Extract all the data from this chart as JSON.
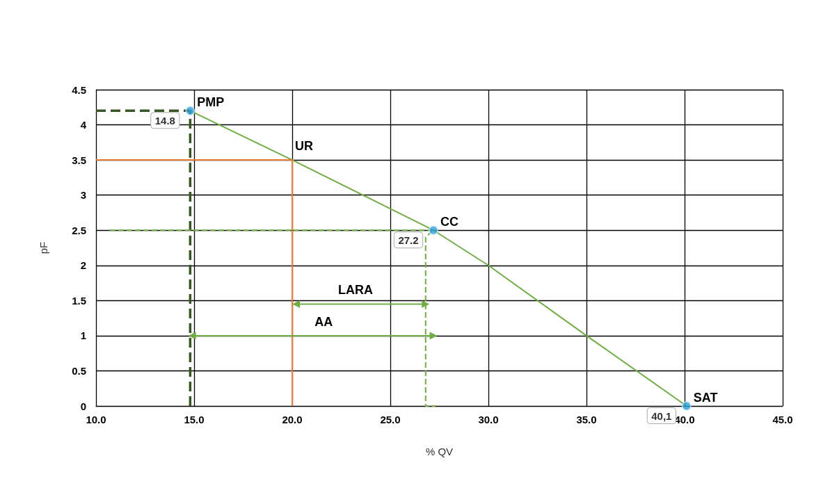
{
  "chart_data": {
    "type": "line",
    "xlabel": "% QV",
    "ylabel": "pF",
    "xlim": [
      10,
      45
    ],
    "xticks": [
      {
        "value": 10,
        "label": "10.0"
      },
      {
        "value": 15,
        "label": "15.0"
      },
      {
        "value": 20,
        "label": "20.0"
      },
      {
        "value": 25,
        "label": "25.0"
      },
      {
        "value": 30,
        "label": "30.0"
      },
      {
        "value": 35,
        "label": "35.0"
      },
      {
        "value": 40,
        "label": "40.0"
      },
      {
        "value": 45,
        "label": "45.0"
      }
    ],
    "ylim": [
      0,
      4.5
    ],
    "yticks": [
      0,
      0.5,
      1,
      1.5,
      2,
      2.5,
      3,
      3.5,
      4,
      4.5
    ],
    "grid": true,
    "series": [
      {
        "color": "#70ad47",
        "line_style": "solid",
        "x": [
          14.8,
          20,
          27.2,
          30,
          35,
          40.1
        ],
        "values": [
          4.2,
          3.5,
          2.5,
          2.0,
          1.0,
          0
        ]
      },
      {
        "type": "scatter",
        "color": "#2e9fd9",
        "marker": "circle",
        "x": [
          14.8,
          27.2,
          40.1
        ],
        "values": [
          4.2,
          2.5,
          0
        ]
      },
      {
        "type": "line",
        "color": "#375623",
        "line_style": "dashed",
        "x": [
          10,
          14.8,
          14.8
        ],
        "values": [
          4.2,
          4.2,
          0
        ]
      },
      {
        "type": "line",
        "color": "#ed7d31",
        "line_style": "solid",
        "x": [
          10,
          20,
          20
        ],
        "values": [
          3.5,
          3.5,
          0
        ]
      },
      {
        "type": "line",
        "color": "#70ad47",
        "line_style": "dashed",
        "x": [
          10.7,
          27.2,
          26.8,
          26.8,
          27.3
        ],
        "values": [
          2.5,
          2.5,
          2.4,
          0,
          0
        ]
      },
      {
        "type": "line",
        "color": "#70ad47",
        "line_style": "solid",
        "marker": "triangle",
        "x": [
          20.2,
          26.8
        ],
        "values": [
          1.45,
          1.45
        ]
      },
      {
        "type": "line",
        "color": "#70ad47",
        "line_style": "solid",
        "marker": "triangle",
        "x": [
          14.9,
          27.2
        ],
        "values": [
          1.0,
          1.0
        ]
      }
    ],
    "annotations": [
      {
        "text": "PMP",
        "x": 14.8,
        "y": 4.2
      },
      {
        "text": "UR",
        "x": 20,
        "y": 3.5
      },
      {
        "text": "CC",
        "x": 27.2,
        "y": 2.5
      },
      {
        "text": "SAT",
        "x": 40.1,
        "y": 0
      },
      {
        "text": "14.8",
        "x": 14.8,
        "y": 4.2
      },
      {
        "text": "27.2",
        "x": 27.2,
        "y": 2.5
      },
      {
        "text": "40,1",
        "x": 40.1,
        "y": 0
      },
      {
        "text": "LARA",
        "x": 22.2,
        "y": 1.45
      },
      {
        "text": "AA",
        "x": 21,
        "y": 1.0
      }
    ]
  }
}
